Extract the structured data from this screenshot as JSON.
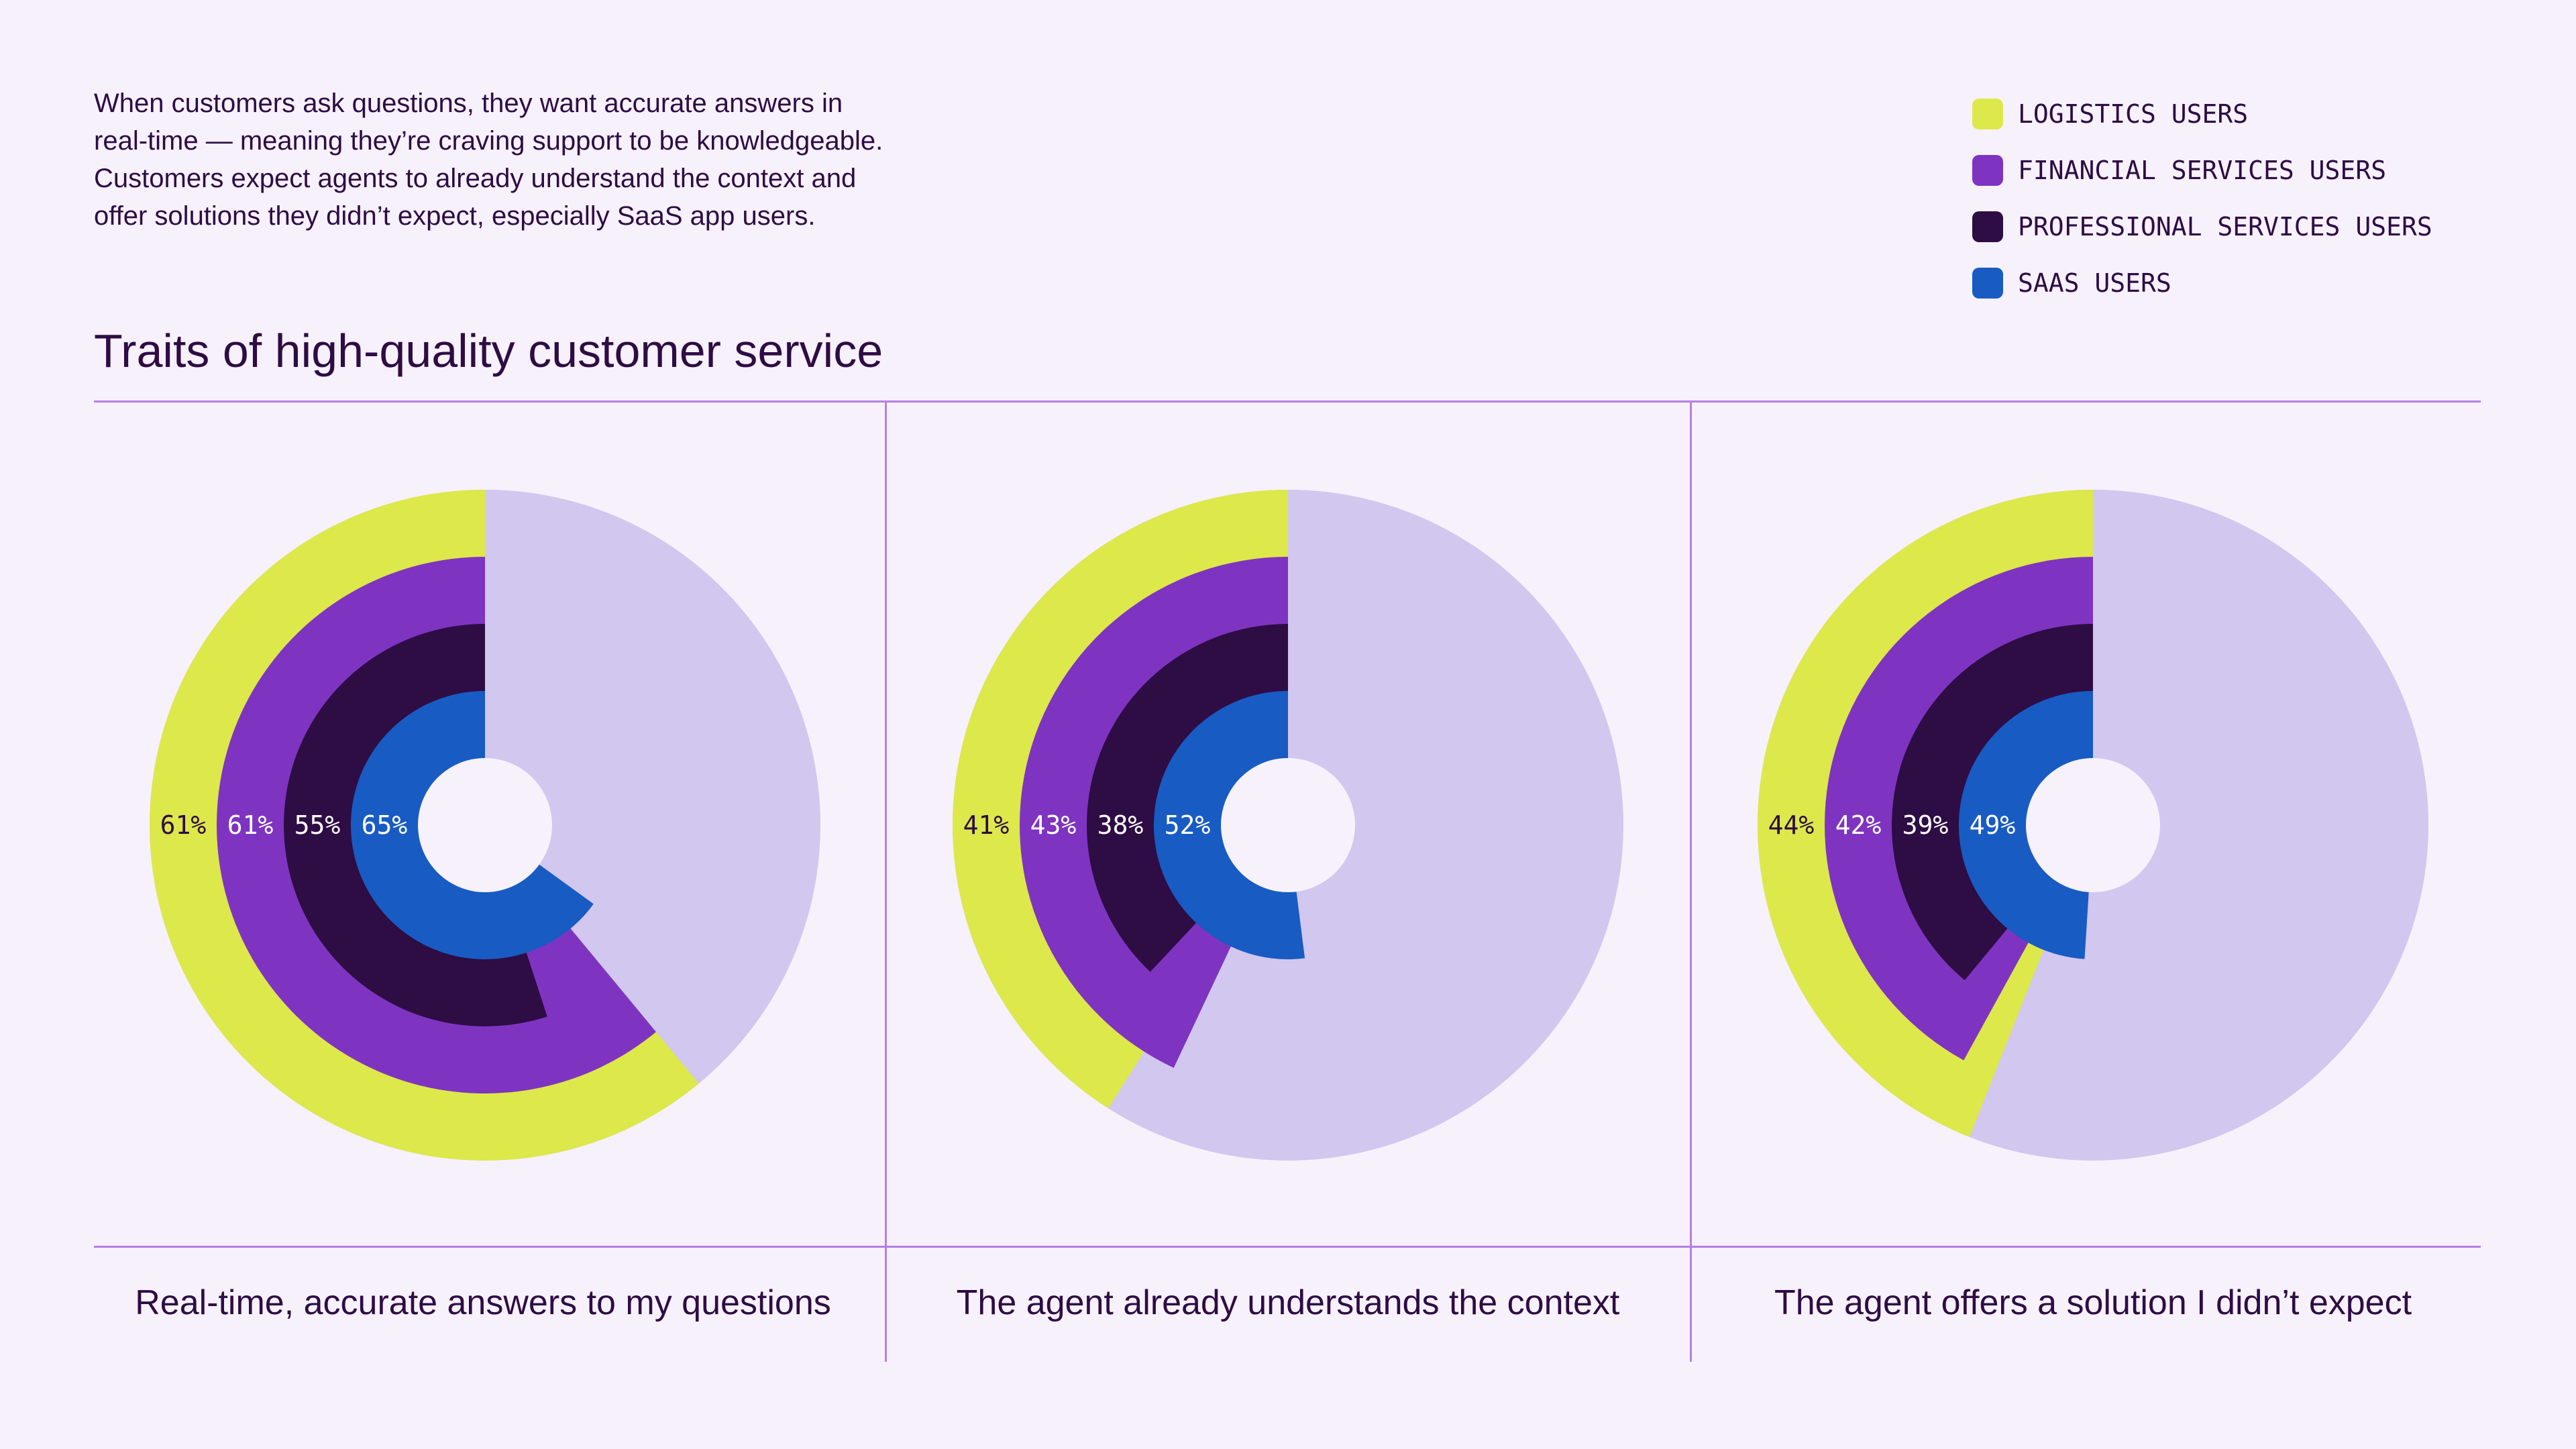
{
  "intro": {
    "lines": [
      "When customers ask questions, they want accurate answers in",
      "real-time — meaning they’re craving support to be knowledgeable.",
      "Customers expect agents to already understand the context and",
      "offer solutions they didn’t expect, especially SaaS app users."
    ]
  },
  "colors": {
    "background": "#f7f1fc",
    "remainder": "#d1c7ef",
    "center": "#f7f1fc",
    "divider": "#b57fe3",
    "text": "#2e0c44"
  },
  "legend": [
    {
      "label": "LOGISTICS USERS",
      "color": "#dde84a"
    },
    {
      "label": "FINANCIAL SERVICES USERS",
      "color": "#7e34c1"
    },
    {
      "label": "PROFESSIONAL SERVICES USERS",
      "color": "#2e0c44"
    },
    {
      "label": "SAAS USERS",
      "color": "#185bc3"
    }
  ],
  "chart_data": {
    "type": "radial-bar",
    "title": "Traits of high-quality customer service",
    "series": [
      {
        "name": "LOGISTICS USERS",
        "color": "#dde84a"
      },
      {
        "name": "FINANCIAL SERVICES USERS",
        "color": "#7e34c1"
      },
      {
        "name": "PROFESSIONAL SERVICES USERS",
        "color": "#2e0c44"
      },
      {
        "name": "SAAS USERS",
        "color": "#185bc3"
      }
    ],
    "panels": [
      {
        "category": "Real-time, accurate answers to my questions",
        "values": [
          61,
          61,
          55,
          65
        ],
        "labels": [
          "61%",
          "61%",
          "55%",
          "65%"
        ]
      },
      {
        "category": "The agent already understands the context",
        "values": [
          41,
          43,
          38,
          52
        ],
        "labels": [
          "41%",
          "43%",
          "38%",
          "52%"
        ]
      },
      {
        "category": "The agent offers a solution I didn’t expect",
        "values": [
          44,
          42,
          39,
          49
        ],
        "labels": [
          "44%",
          "42%",
          "39%",
          "49%"
        ]
      }
    ],
    "unit": "%"
  }
}
